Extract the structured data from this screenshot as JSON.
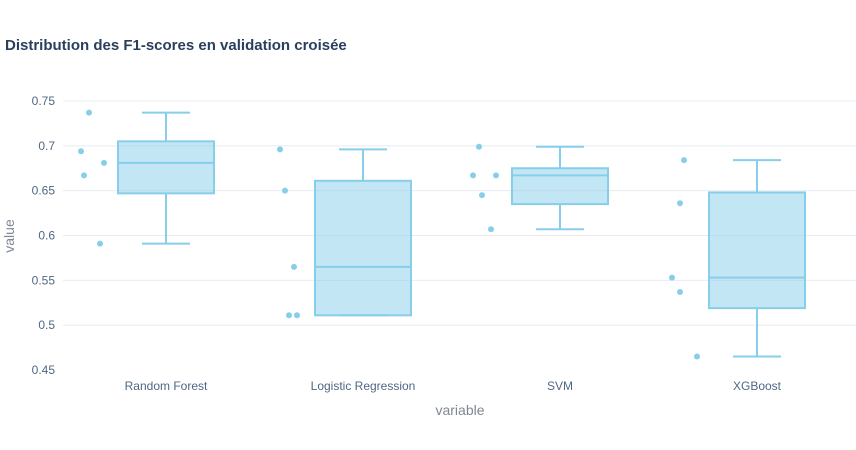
{
  "chart_data": {
    "type": "box",
    "title": "Distribution des F1-scores en validation croisée",
    "xlabel": "variable",
    "ylabel": "value",
    "ylim": [
      0.45,
      0.76
    ],
    "yticks": [
      0.45,
      0.5,
      0.55,
      0.6,
      0.65,
      0.7,
      0.75
    ],
    "ytick_labels": [
      "0.45",
      "0.5",
      "0.55",
      "0.6",
      "0.65",
      "0.7",
      "0.75"
    ],
    "categories": [
      "Random Forest",
      "Logistic Regression",
      "SVM",
      "XGBoost"
    ],
    "boxes": [
      {
        "category": "Random Forest",
        "min": 0.591,
        "q1": 0.647,
        "median": 0.681,
        "q3": 0.705,
        "max": 0.737,
        "points": [
          0.737,
          0.694,
          0.681,
          0.667,
          0.591
        ]
      },
      {
        "category": "Logistic Regression",
        "min": 0.511,
        "q1": 0.511,
        "median": 0.565,
        "q3": 0.661,
        "max": 0.696,
        "points": [
          0.696,
          0.65,
          0.565,
          0.511,
          0.511
        ]
      },
      {
        "category": "SVM",
        "min": 0.607,
        "q1": 0.635,
        "median": 0.667,
        "q3": 0.675,
        "max": 0.699,
        "points": [
          0.699,
          0.667,
          0.667,
          0.645,
          0.607
        ]
      },
      {
        "category": "XGBoost",
        "min": 0.465,
        "q1": 0.519,
        "median": 0.553,
        "q3": 0.648,
        "max": 0.684,
        "points": [
          0.684,
          0.636,
          0.553,
          0.537,
          0.465
        ]
      }
    ],
    "color": "#87ceeb",
    "fill": "rgba(135,206,235,0.5)",
    "grid": true,
    "legend": "none"
  }
}
